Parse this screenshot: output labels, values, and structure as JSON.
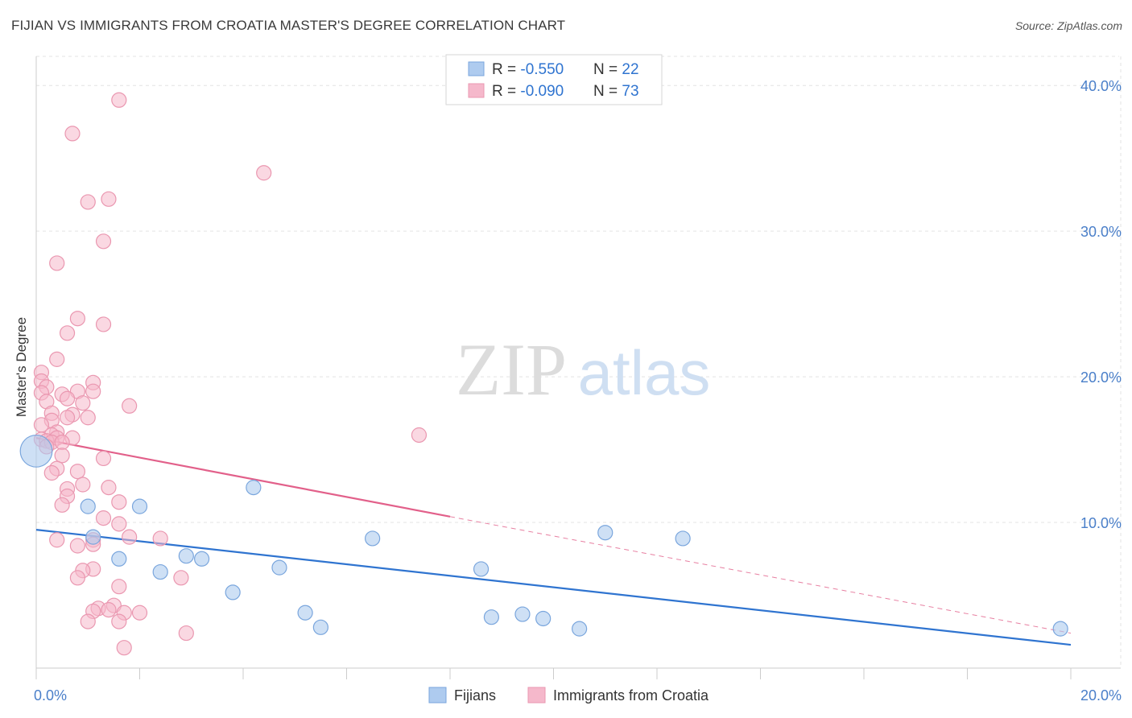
{
  "title": "FIJIAN VS IMMIGRANTS FROM CROATIA MASTER'S DEGREE CORRELATION CHART",
  "source": "Source: ZipAtlas.com",
  "watermark": {
    "part1": "ZIP",
    "part2": "atlas"
  },
  "colors": {
    "blue_fill": "#aecbef",
    "blue_stroke": "#7aa6dd",
    "blue_line": "#2f74d0",
    "pink_fill": "#f5b8cb",
    "pink_stroke": "#ea97b0",
    "pink_line": "#e2608a",
    "tick_text": "#4a7fc9",
    "grid": "#e3e3e3"
  },
  "legend_top": [
    {
      "r_label": "R = ",
      "r_value": "-0.550",
      "n_label": "N = ",
      "n_value": "22",
      "series": "blue"
    },
    {
      "r_label": "R = ",
      "r_value": "-0.090",
      "n_label": "N = ",
      "n_value": "73",
      "series": "pink"
    }
  ],
  "legend_bottom": [
    "Fijians",
    "Immigrants from Croatia"
  ],
  "chart_data": {
    "type": "scatter",
    "title": "FIJIAN VS IMMIGRANTS FROM CROATIA MASTER'S DEGREE CORRELATION CHART",
    "ylabel": "Master's Degree",
    "xlabel": "",
    "xlim": [
      0,
      20
    ],
    "ylim": [
      0,
      42
    ],
    "x_tick_labels": [
      {
        "value": 0,
        "label": "0.0%"
      },
      {
        "value": 20,
        "label": "20.0%"
      }
    ],
    "y_tick_labels": [
      {
        "value": 10,
        "label": "10.0%"
      },
      {
        "value": 20,
        "label": "20.0%"
      },
      {
        "value": 30,
        "label": "30.0%"
      },
      {
        "value": 40,
        "label": "40.0%"
      }
    ],
    "series": [
      {
        "name": "Fijians",
        "color": "blue",
        "points": [
          [
            0.0,
            14.9,
            2.2
          ],
          [
            1.1,
            9.0,
            1
          ],
          [
            1.6,
            7.5,
            1
          ],
          [
            2.0,
            11.1,
            1
          ],
          [
            2.4,
            6.6,
            1
          ],
          [
            2.9,
            7.7,
            1
          ],
          [
            3.2,
            7.5,
            1
          ],
          [
            3.8,
            5.2,
            1
          ],
          [
            4.2,
            12.4,
            1
          ],
          [
            4.7,
            6.9,
            1
          ],
          [
            5.2,
            3.8,
            1
          ],
          [
            5.5,
            2.8,
            1
          ],
          [
            6.5,
            8.9,
            1
          ],
          [
            8.6,
            6.8,
            1
          ],
          [
            8.8,
            3.5,
            1
          ],
          [
            9.4,
            3.7,
            1
          ],
          [
            9.8,
            3.4,
            1
          ],
          [
            10.5,
            2.7,
            1
          ],
          [
            11.0,
            9.3,
            1
          ],
          [
            12.5,
            8.9,
            1
          ],
          [
            19.8,
            2.7,
            1
          ],
          [
            1.0,
            11.1,
            1
          ]
        ],
        "trend": {
          "x0": 0,
          "y0": 9.5,
          "x1": 20,
          "y1": 1.6
        }
      },
      {
        "name": "Immigrants from Croatia",
        "color": "pink",
        "points": [
          [
            1.6,
            39.0
          ],
          [
            0.7,
            36.7
          ],
          [
            4.4,
            34.0
          ],
          [
            1.4,
            32.2
          ],
          [
            1.0,
            32.0
          ],
          [
            1.3,
            29.3
          ],
          [
            0.4,
            27.8
          ],
          [
            0.8,
            24.0
          ],
          [
            1.3,
            23.6
          ],
          [
            0.6,
            23.0
          ],
          [
            0.4,
            21.2
          ],
          [
            0.1,
            20.3
          ],
          [
            0.1,
            19.7
          ],
          [
            1.1,
            19.6
          ],
          [
            0.2,
            19.3
          ],
          [
            0.8,
            19.0
          ],
          [
            1.1,
            19.0
          ],
          [
            0.1,
            18.9
          ],
          [
            0.5,
            18.8
          ],
          [
            0.6,
            18.5
          ],
          [
            0.2,
            18.3
          ],
          [
            0.9,
            18.2
          ],
          [
            1.8,
            18.0
          ],
          [
            0.3,
            17.5
          ],
          [
            0.7,
            17.4
          ],
          [
            1.0,
            17.2
          ],
          [
            0.6,
            17.2
          ],
          [
            0.3,
            17.0
          ],
          [
            0.1,
            16.7
          ],
          [
            0.4,
            16.2
          ],
          [
            0.3,
            16.0
          ],
          [
            0.4,
            15.8
          ],
          [
            0.7,
            15.8
          ],
          [
            0.1,
            15.7
          ],
          [
            0.2,
            15.6
          ],
          [
            0.3,
            15.5
          ],
          [
            0.5,
            15.5
          ],
          [
            7.4,
            16.0
          ],
          [
            0.5,
            14.6
          ],
          [
            1.3,
            14.4
          ],
          [
            0.4,
            13.7
          ],
          [
            0.8,
            13.5
          ],
          [
            0.3,
            13.4
          ],
          [
            0.9,
            12.6
          ],
          [
            1.4,
            12.4
          ],
          [
            0.6,
            12.3
          ],
          [
            0.6,
            11.8
          ],
          [
            1.6,
            11.4
          ],
          [
            0.5,
            11.2
          ],
          [
            1.3,
            10.3
          ],
          [
            1.6,
            9.9
          ],
          [
            1.8,
            9.0
          ],
          [
            2.4,
            8.9
          ],
          [
            1.1,
            8.8
          ],
          [
            0.4,
            8.8
          ],
          [
            1.1,
            8.5
          ],
          [
            0.8,
            8.4
          ],
          [
            1.1,
            6.8
          ],
          [
            0.9,
            6.7
          ],
          [
            0.8,
            6.2
          ],
          [
            2.8,
            6.2
          ],
          [
            1.6,
            5.6
          ],
          [
            1.5,
            4.3
          ],
          [
            1.2,
            4.1
          ],
          [
            1.4,
            4.0
          ],
          [
            1.1,
            3.9
          ],
          [
            1.7,
            3.8
          ],
          [
            2.0,
            3.8
          ],
          [
            1.0,
            3.2
          ],
          [
            1.6,
            3.2
          ],
          [
            2.9,
            2.4
          ],
          [
            1.7,
            1.4
          ],
          [
            0.2,
            15.2
          ]
        ],
        "trend": {
          "x0": 0,
          "y0": 15.8,
          "x1": 8.0,
          "y1": 10.4,
          "dash_x1": 20,
          "dash_y1": 2.4
        }
      }
    ]
  }
}
